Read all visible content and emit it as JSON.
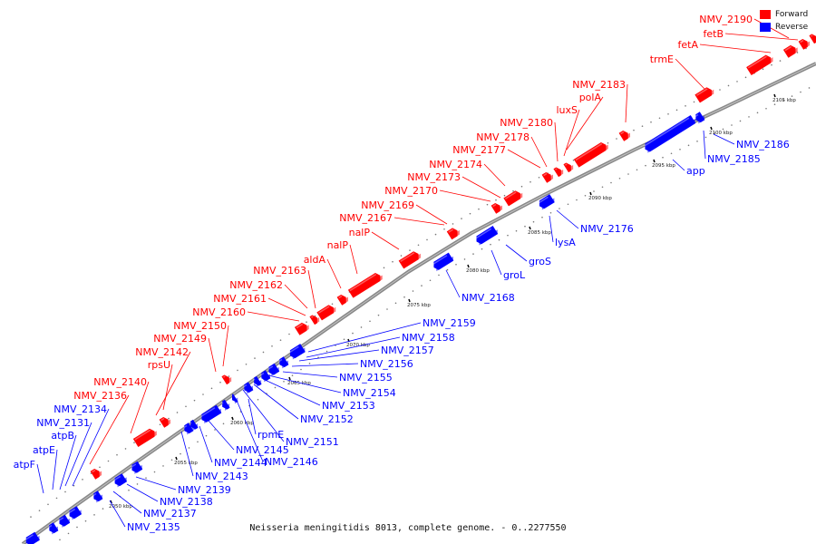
{
  "caption": "Neisseria meningitidis 8013, complete genome. - 0..2277550",
  "legend": [
    {
      "label": "Forward",
      "color": "#ff0000"
    },
    {
      "label": "Reverse",
      "color": "#0000ff"
    }
  ],
  "colors": {
    "forward": "#ff0000",
    "reverse": "#0000ff",
    "backbone": "#888888"
  },
  "scale_ticks": [
    "2050 kbp",
    "2055 kbp",
    "2060 kbp",
    "2065 kbp",
    "2070 kbp",
    "2075 kbp",
    "2080 kbp",
    "2085 kbp",
    "2090 kbp",
    "2095 kbp",
    "2100 kbp",
    "2105 kbp"
  ],
  "forward_genes": [
    "NMV_2190",
    "fetB",
    "fetA",
    "trmE",
    "NMV_2183",
    "polA",
    "luxS",
    "NMV_2180",
    "NMV_2178",
    "NMV_2177",
    "NMV_2174",
    "NMV_2173",
    "NMV_2170",
    "NMV_2169",
    "NMV_2167",
    "nalP",
    "nalP",
    "aldA",
    "NMV_2163",
    "NMV_2162",
    "NMV_2161",
    "NMV_2160",
    "NMV_2150",
    "NMV_2149",
    "NMV_2142",
    "rpsU",
    "NMV_2140",
    "NMV_2136"
  ],
  "reverse_left_genes": [
    "NMV_2134",
    "NMV_2131",
    "atpB",
    "atpE",
    "atpF"
  ],
  "reverse_genes": [
    "NMV_2186",
    "NMV_2185",
    "app",
    "NMV_2176",
    "lysA",
    "groS",
    "groL",
    "NMV_2168",
    "NMV_2159",
    "NMV_2158",
    "NMV_2157",
    "NMV_2156",
    "NMV_2155",
    "NMV_2154",
    "NMV_2153",
    "NMV_2152",
    "NMV_2151",
    "rpmE",
    "NMV_2146",
    "NMV_2145",
    "NMV_2144",
    "NMV_2143",
    "NMV_2139",
    "NMV_2138",
    "NMV_2137",
    "NMV_2135"
  ]
}
